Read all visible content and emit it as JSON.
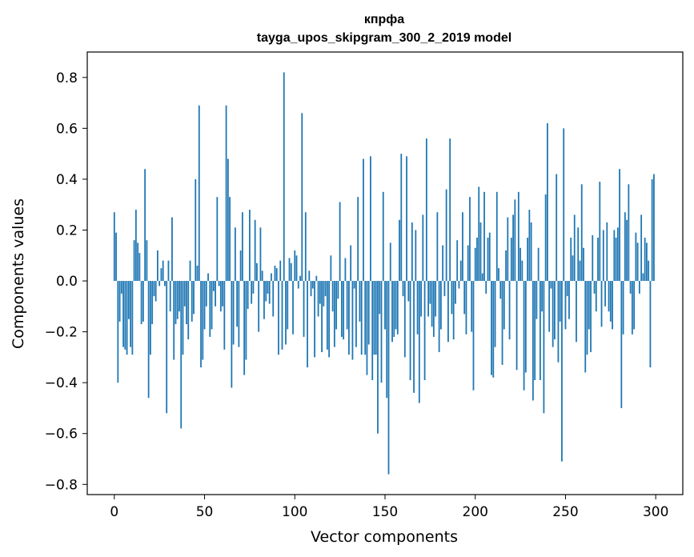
{
  "chart_data": {
    "type": "bar",
    "title": "кпрфа",
    "subtitle": "tayga_upos_skipgram_300_2_2019 model",
    "xlabel": "Vector components",
    "ylabel": "Components values",
    "xlim": [
      -15,
      315
    ],
    "ylim": [
      -0.84,
      0.9
    ],
    "xticks": [
      0,
      50,
      100,
      150,
      200,
      250,
      300
    ],
    "yticks": [
      -0.8,
      -0.6,
      -0.4,
      -0.2,
      0.0,
      0.2,
      0.4,
      0.6,
      0.8
    ],
    "ytick_labels": [
      "−0.8",
      "−0.6",
      "−0.4",
      "−0.2",
      "0.0",
      "0.2",
      "0.4",
      "0.6",
      "0.8"
    ],
    "bar_color": "#1f77b4",
    "categories_note": "component index 0..299",
    "values": [
      0.27,
      0.19,
      -0.4,
      -0.16,
      -0.05,
      -0.26,
      -0.27,
      -0.29,
      -0.15,
      -0.26,
      -0.29,
      0.16,
      0.28,
      0.15,
      0.11,
      -0.17,
      -0.16,
      0.44,
      0.16,
      -0.46,
      -0.29,
      -0.17,
      -0.06,
      -0.08,
      0.12,
      -0.02,
      0.05,
      0.08,
      -0.02,
      -0.52,
      0.08,
      -0.12,
      0.25,
      -0.31,
      -0.17,
      -0.15,
      -0.12,
      -0.58,
      -0.29,
      -0.1,
      -0.17,
      -0.23,
      0.08,
      -0.16,
      -0.13,
      0.4,
      0.06,
      0.69,
      -0.34,
      -0.31,
      -0.19,
      -0.1,
      0.03,
      -0.22,
      -0.19,
      -0.04,
      -0.1,
      0.33,
      -0.02,
      -0.12,
      -0.1,
      -0.27,
      0.69,
      0.48,
      0.33,
      -0.42,
      -0.25,
      0.21,
      -0.18,
      -0.26,
      0.12,
      0.27,
      -0.37,
      -0.31,
      -0.11,
      0.28,
      -0.09,
      -0.05,
      0.24,
      0.07,
      -0.2,
      0.21,
      0.04,
      -0.15,
      -0.08,
      -0.05,
      -0.09,
      0.03,
      -0.14,
      0.06,
      0.05,
      -0.29,
      0.08,
      -0.27,
      0.82,
      -0.25,
      -0.19,
      0.09,
      0.07,
      -0.21,
      0.12,
      0.1,
      -0.03,
      0.02,
      0.66,
      -0.22,
      0.27,
      -0.34,
      0.04,
      -0.06,
      -0.03,
      -0.3,
      0.02,
      -0.14,
      -0.09,
      -0.28,
      -0.1,
      -0.06,
      -0.27,
      -0.3,
      0.1,
      -0.12,
      -0.26,
      -0.19,
      -0.07,
      0.31,
      -0.22,
      -0.23,
      0.09,
      -0.19,
      -0.29,
      0.14,
      -0.31,
      -0.03,
      -0.26,
      0.33,
      -0.16,
      -0.29,
      0.48,
      -0.29,
      -0.37,
      -0.25,
      0.49,
      -0.39,
      -0.29,
      -0.29,
      -0.6,
      -0.13,
      -0.4,
      0.35,
      -0.19,
      -0.46,
      -0.76,
      0.15,
      -0.24,
      -0.22,
      -0.19,
      -0.21,
      0.24,
      0.5,
      -0.06,
      -0.3,
      0.49,
      -0.08,
      -0.39,
      0.23,
      -0.44,
      0.2,
      -0.21,
      -0.48,
      -0.14,
      0.26,
      -0.39,
      0.56,
      -0.14,
      -0.09,
      -0.18,
      -0.22,
      -0.14,
      0.27,
      -0.28,
      -0.19,
      0.14,
      -0.06,
      0.36,
      -0.24,
      0.56,
      -0.13,
      -0.23,
      -0.09,
      0.16,
      -0.03,
      0.08,
      0.27,
      -0.13,
      -0.21,
      0.14,
      0.33,
      -0.2,
      -0.43,
      0.13,
      0.17,
      0.37,
      0.23,
      0.03,
      0.35,
      -0.05,
      0.17,
      0.19,
      -0.37,
      -0.38,
      -0.26,
      0.35,
      0.05,
      -0.07,
      -0.33,
      -0.19,
      0.12,
      0.25,
      -0.23,
      0.17,
      0.26,
      0.32,
      -0.35,
      0.35,
      0.13,
      0.08,
      -0.43,
      -0.36,
      0.17,
      0.28,
      0.23,
      -0.47,
      -0.39,
      -0.15,
      0.13,
      -0.39,
      -0.12,
      -0.52,
      0.34,
      0.62,
      -0.2,
      -0.03,
      -0.26,
      -0.23,
      0.42,
      -0.32,
      -0.16,
      -0.71,
      0.6,
      -0.19,
      -0.06,
      -0.15,
      0.17,
      0.1,
      0.26,
      -0.24,
      0.21,
      0.08,
      0.38,
      0.13,
      -0.36,
      -0.29,
      -0.19,
      -0.28,
      0.18,
      -0.05,
      -0.12,
      0.17,
      0.39,
      -0.18,
      0.2,
      -0.1,
      0.23,
      -0.12,
      -0.16,
      -0.19,
      0.2,
      0.17,
      0.21,
      0.44,
      -0.5,
      -0.21,
      0.27,
      0.24,
      0.38,
      -0.05,
      -0.21,
      -0.19,
      0.19,
      0.15,
      -0.05,
      0.26,
      0.03,
      0.17,
      0.15,
      0.08,
      -0.34,
      0.4,
      0.42
    ]
  }
}
